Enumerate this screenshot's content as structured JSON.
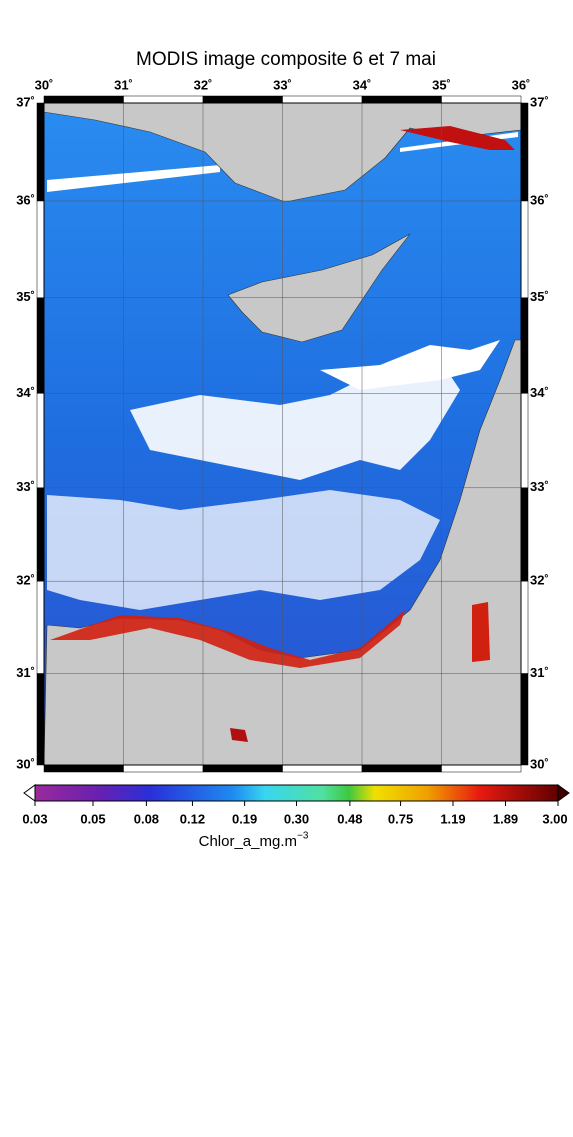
{
  "map": {
    "title": "MODIS image composite 6 et 7 mai",
    "lon_ticks": [
      {
        "value": 30,
        "label": "30˚"
      },
      {
        "value": 31,
        "label": "31˚"
      },
      {
        "value": 32,
        "label": "32˚"
      },
      {
        "value": 33,
        "label": "33˚"
      },
      {
        "value": 34,
        "label": "34˚"
      },
      {
        "value": 35,
        "label": "35˚"
      },
      {
        "value": 36,
        "label": "36˚"
      }
    ],
    "lat_ticks": [
      {
        "value": 37,
        "label": "37˚"
      },
      {
        "value": 36,
        "label": "36˚"
      },
      {
        "value": 35,
        "label": "35˚"
      },
      {
        "value": 34,
        "label": "34˚"
      },
      {
        "value": 33,
        "label": "33˚"
      },
      {
        "value": 32,
        "label": "32˚"
      },
      {
        "value": 31,
        "label": "31˚"
      },
      {
        "value": 30,
        "label": "30˚"
      }
    ],
    "colorbar": {
      "ticks": [
        0.03,
        0.05,
        0.08,
        0.12,
        0.19,
        {
          "value": 0.3,
          "label": "0.30"
        },
        0.48,
        0.75,
        1.19,
        1.89,
        {
          "value": 3,
          "label": "3.00"
        }
      ],
      "label": "Chlor_a_mg.m",
      "label_exponent": "−3"
    }
  }
}
